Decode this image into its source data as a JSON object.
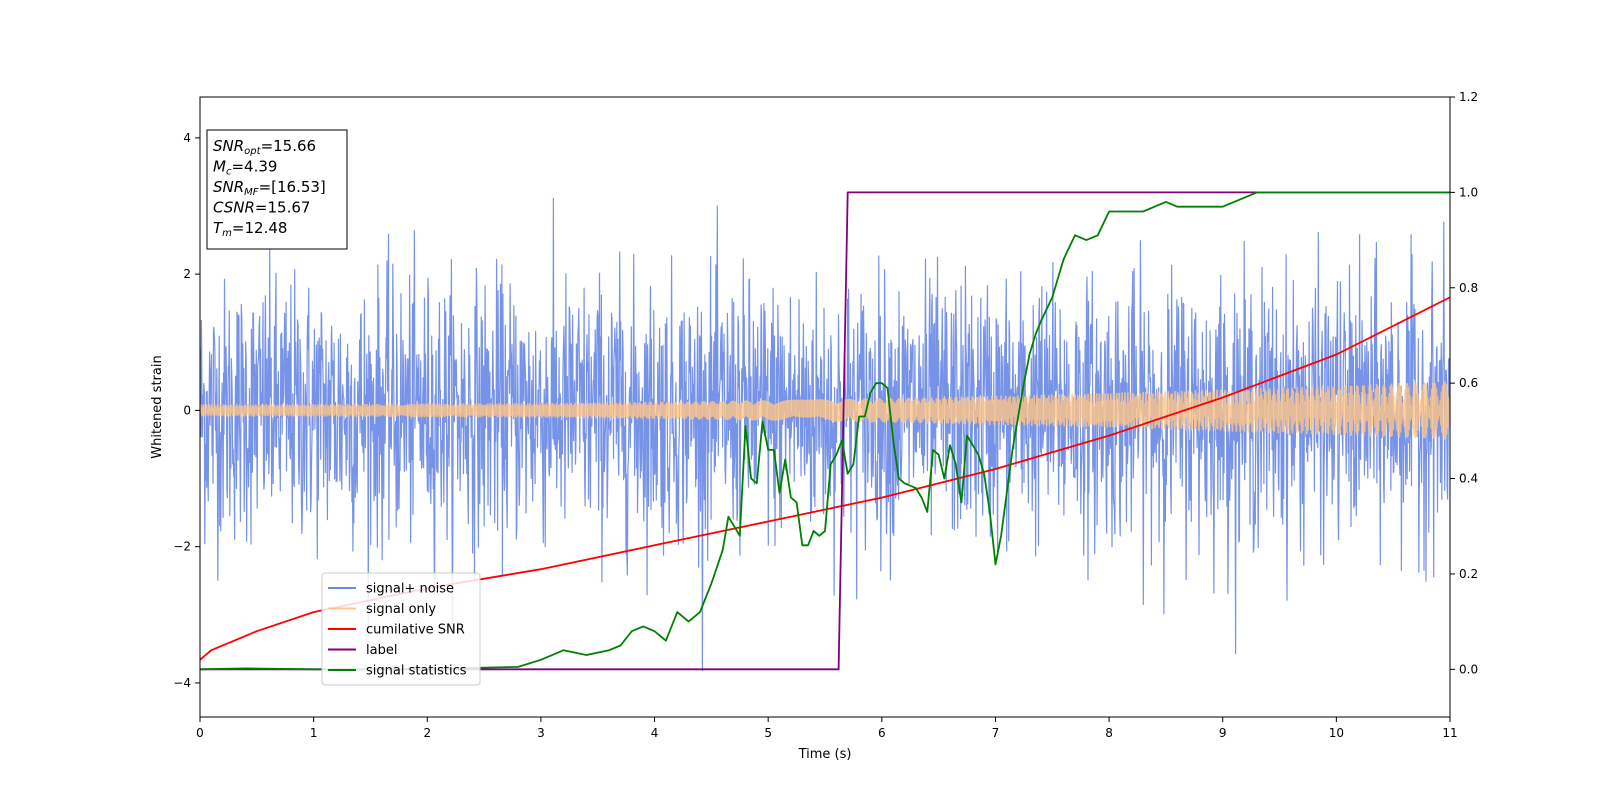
{
  "chart_data": {
    "type": "line",
    "title": "",
    "xlabel": "Time (s)",
    "ylabel": "Whitened strain",
    "y2label": "",
    "xlim": [
      0,
      11
    ],
    "ylim": [
      -4.5,
      4.6
    ],
    "y2lim": [
      -0.1,
      1.2
    ],
    "x_ticks": [
      "0",
      "1",
      "2",
      "3",
      "4",
      "5",
      "6",
      "7",
      "8",
      "9",
      "10",
      "11"
    ],
    "y_ticks": [
      "-4",
      "-2",
      "0",
      "2",
      "4"
    ],
    "y2_ticks": [
      "0.0",
      "0.2",
      "0.4",
      "0.6",
      "0.8",
      "1.0",
      "1.2"
    ],
    "grid": false,
    "legend_position": "lower-left",
    "annotation": {
      "lines": [
        {
          "label": "SNR",
          "sub": "opt",
          "value": "=15.66"
        },
        {
          "label": "M",
          "sub": "c",
          "value": "=4.39"
        },
        {
          "label": "SNR",
          "sub": "MF",
          "value": "=[16.53]"
        },
        {
          "label": "CSNR",
          "sub": "",
          "value": "=15.67"
        },
        {
          "label": "T",
          "sub": "m",
          "value": "=12.48"
        }
      ]
    },
    "series": [
      {
        "name": "signal+ noise",
        "axis": "left",
        "color": "#6a8ae6",
        "kind": "noise",
        "std": 0.95,
        "peak": 4.15
      },
      {
        "name": "signal only",
        "axis": "left",
        "color": "#ffc687",
        "kind": "chirp",
        "amp_start": 0.08,
        "amp_end": 0.42
      },
      {
        "name": "cumilative SNR",
        "axis": "right",
        "color": "#ff0000",
        "kind": "line",
        "x": [
          0,
          0.1,
          0.5,
          1,
          2,
          3,
          4,
          5,
          6,
          7,
          8,
          9,
          10,
          11
        ],
        "y": [
          0.02,
          0.04,
          0.08,
          0.12,
          0.17,
          0.21,
          0.26,
          0.31,
          0.36,
          0.42,
          0.49,
          0.57,
          0.66,
          0.78
        ]
      },
      {
        "name": "label",
        "axis": "right",
        "color": "#800080",
        "kind": "line",
        "x": [
          0,
          5.62,
          5.7,
          11
        ],
        "y": [
          0.0,
          0.0,
          1.0,
          1.0
        ]
      },
      {
        "name": "signal statistics",
        "axis": "right",
        "color": "#008000",
        "kind": "line",
        "x": [
          0,
          0.4,
          1,
          2,
          2.4,
          2.8,
          3.0,
          3.2,
          3.4,
          3.6,
          3.7,
          3.8,
          3.9,
          4.0,
          4.1,
          4.2,
          4.3,
          4.4,
          4.5,
          4.6,
          4.65,
          4.7,
          4.75,
          4.8,
          4.85,
          4.9,
          4.95,
          5.0,
          5.05,
          5.1,
          5.15,
          5.2,
          5.25,
          5.3,
          5.35,
          5.4,
          5.45,
          5.5,
          5.55,
          5.6,
          5.65,
          5.7,
          5.75,
          5.8,
          5.85,
          5.9,
          5.95,
          6.0,
          6.05,
          6.1,
          6.15,
          6.2,
          6.3,
          6.35,
          6.4,
          6.45,
          6.5,
          6.55,
          6.6,
          6.65,
          6.7,
          6.75,
          6.8,
          6.85,
          6.9,
          6.95,
          7.0,
          7.05,
          7.1,
          7.15,
          7.2,
          7.25,
          7.3,
          7.35,
          7.4,
          7.5,
          7.6,
          7.7,
          7.8,
          7.9,
          8.0,
          8.1,
          8.2,
          8.3,
          8.4,
          8.5,
          8.6,
          8.7,
          8.8,
          8.9,
          9.0,
          9.1,
          9.2,
          9.3,
          9.4,
          9.5,
          9.6,
          9.8,
          10.0,
          10.5,
          11.0
        ],
        "y": [
          0.0,
          0.002,
          0.0,
          0.0,
          0.003,
          0.005,
          0.02,
          0.04,
          0.03,
          0.04,
          0.05,
          0.08,
          0.09,
          0.08,
          0.06,
          0.12,
          0.1,
          0.12,
          0.18,
          0.25,
          0.32,
          0.3,
          0.28,
          0.51,
          0.4,
          0.39,
          0.52,
          0.46,
          0.46,
          0.37,
          0.44,
          0.36,
          0.35,
          0.26,
          0.26,
          0.29,
          0.28,
          0.29,
          0.43,
          0.45,
          0.48,
          0.41,
          0.43,
          0.53,
          0.53,
          0.58,
          0.6,
          0.6,
          0.59,
          0.48,
          0.4,
          0.39,
          0.38,
          0.36,
          0.33,
          0.46,
          0.45,
          0.4,
          0.47,
          0.43,
          0.35,
          0.49,
          0.47,
          0.45,
          0.41,
          0.33,
          0.22,
          0.28,
          0.37,
          0.46,
          0.53,
          0.6,
          0.66,
          0.7,
          0.73,
          0.78,
          0.86,
          0.91,
          0.9,
          0.91,
          0.96,
          0.96,
          0.96,
          0.96,
          0.97,
          0.98,
          0.97,
          0.97,
          0.97,
          0.97,
          0.97,
          0.98,
          0.99,
          1.0,
          1.0,
          1.0,
          1.0,
          1.0,
          1.0,
          1.0,
          1.0
        ]
      }
    ]
  }
}
